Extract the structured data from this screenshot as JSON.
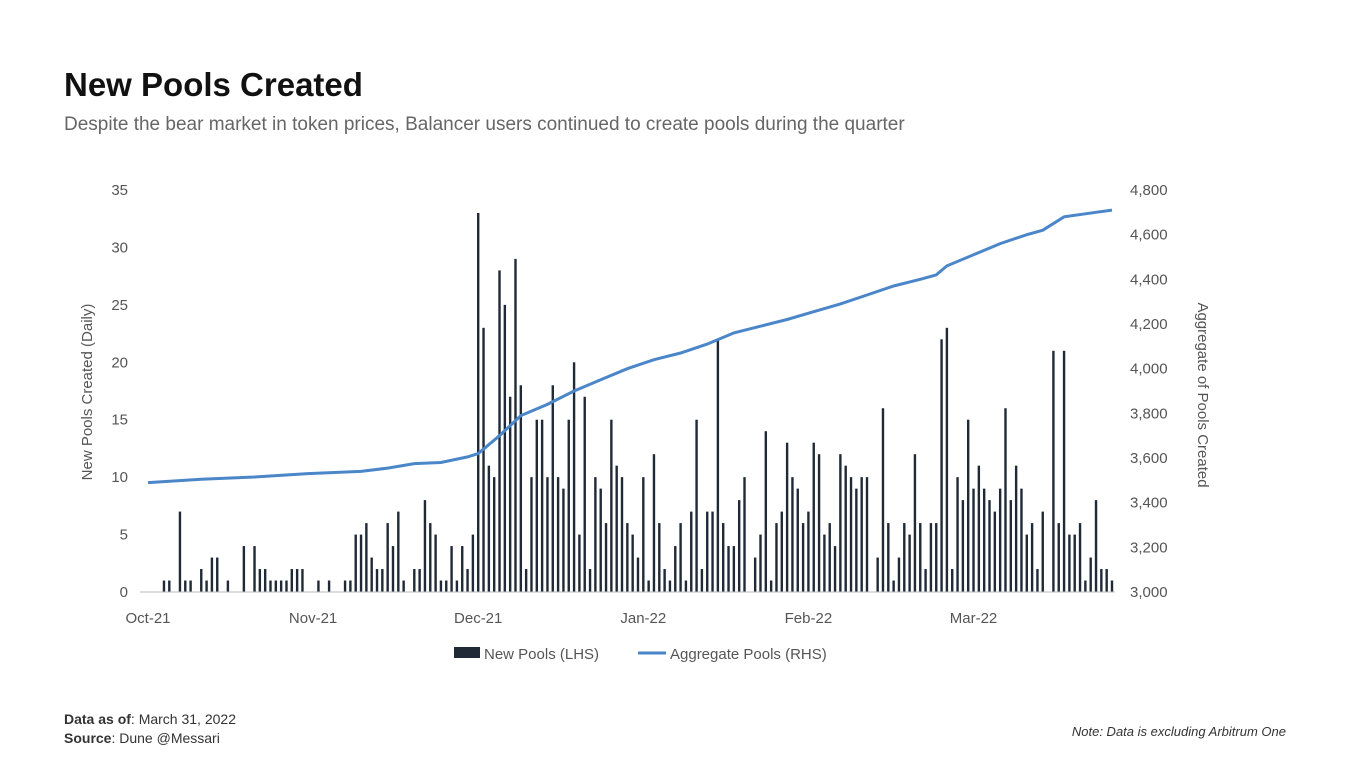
{
  "header": {
    "title": "New Pools Created",
    "subtitle": "Despite the bear market in token prices, Balancer users continued to create pools during the quarter"
  },
  "chart_data": {
    "type": "bar+line",
    "x_count": 182,
    "categories": [
      "Oct-21",
      "Nov-21",
      "Dec-21",
      "Jan-22",
      "Feb-22",
      "Mar-22"
    ],
    "category_start_index": [
      0,
      31,
      62,
      93,
      124,
      155
    ],
    "ylabel": "New Pools Created (Daily)",
    "y2label": "Aggregate of Pools Created",
    "ylim": [
      0,
      35
    ],
    "yticks": [
      "0",
      "5",
      "10",
      "15",
      "20",
      "25",
      "30",
      "35"
    ],
    "y2lim": [
      3000,
      4800
    ],
    "y2ticks": [
      "3,000",
      "3,200",
      "3,400",
      "3,600",
      "3,800",
      "4,000",
      "4,200",
      "4,400",
      "4,600",
      "4,800"
    ],
    "legend": {
      "placement": "bottom",
      "entries": [
        "New Pools (LHS)",
        "Aggregate Pools (RHS)"
      ]
    },
    "colors": {
      "bars": "#1f2a36",
      "line": "#4a86c8"
    },
    "series": [
      {
        "name": "New Pools (LHS)",
        "type": "bar",
        "x": [
          3,
          4,
          6,
          7,
          8,
          10,
          11,
          12,
          13,
          15,
          18,
          20,
          21,
          22,
          23,
          24,
          25,
          26,
          27,
          28,
          29,
          32,
          34,
          37,
          38,
          39,
          40,
          41,
          42,
          43,
          44,
          45,
          46,
          47,
          48,
          50,
          51,
          52,
          53,
          54,
          55,
          56,
          57,
          58,
          59,
          60,
          61,
          62,
          63,
          64,
          65,
          66,
          67,
          68,
          69,
          70,
          71,
          72,
          73,
          74,
          75,
          76,
          77,
          78,
          79,
          80,
          81,
          82,
          83,
          84,
          85,
          86,
          87,
          88,
          89,
          90,
          91,
          92,
          93,
          94,
          95,
          96,
          97,
          98,
          99,
          100,
          101,
          102,
          103,
          104,
          105,
          106,
          107,
          108,
          109,
          110,
          111,
          112,
          114,
          115,
          116,
          117,
          118,
          119,
          120,
          121,
          122,
          123,
          124,
          125,
          126,
          127,
          128,
          129,
          130,
          131,
          132,
          133,
          134,
          135,
          137,
          138,
          139,
          140,
          141,
          142,
          143,
          144,
          145,
          146,
          147,
          148,
          149,
          150,
          151,
          152,
          153,
          154,
          155,
          156,
          157,
          158,
          159,
          160,
          161,
          162,
          163,
          164,
          165,
          166,
          167,
          168,
          170,
          171,
          172,
          173,
          174,
          175,
          176,
          177,
          178,
          179,
          180,
          181
        ],
        "values": [
          1,
          1,
          7,
          1,
          1,
          2,
          1,
          3,
          3,
          1,
          4,
          4,
          2,
          2,
          1,
          1,
          1,
          1,
          2,
          2,
          2,
          1,
          1,
          1,
          1,
          5,
          5,
          6,
          3,
          2,
          2,
          6,
          4,
          7,
          1,
          2,
          2,
          8,
          6,
          5,
          1,
          1,
          4,
          1,
          4,
          2,
          5,
          33,
          23,
          11,
          10,
          28,
          25,
          17,
          29,
          18,
          2,
          10,
          15,
          15,
          10,
          18,
          10,
          9,
          15,
          20,
          5,
          17,
          2,
          10,
          9,
          6,
          15,
          11,
          10,
          6,
          5,
          3,
          10,
          1,
          12,
          6,
          2,
          1,
          4,
          6,
          1,
          7,
          15,
          2,
          7,
          7,
          22,
          6,
          4,
          4,
          8,
          10,
          3,
          5,
          14,
          1,
          6,
          7,
          13,
          10,
          9,
          6,
          7,
          13,
          12,
          5,
          6,
          4,
          12,
          11,
          10,
          9,
          10,
          10,
          3,
          16,
          6,
          1,
          3,
          6,
          5,
          12,
          6,
          2,
          6,
          6,
          22,
          23,
          2,
          10,
          8,
          15,
          9,
          11,
          9,
          8,
          7,
          9,
          16,
          8,
          11,
          9,
          5,
          6,
          2,
          7,
          21,
          6,
          21,
          5,
          5,
          6,
          1,
          3,
          8,
          2,
          2,
          1
        ]
      },
      {
        "name": "Aggregate Pools (RHS)",
        "type": "line",
        "x": [
          0,
          10,
          20,
          30,
          40,
          45,
          50,
          55,
          60,
          62,
          66,
          70,
          75,
          80,
          85,
          90,
          95,
          100,
          105,
          110,
          115,
          120,
          125,
          130,
          135,
          140,
          145,
          148,
          150,
          155,
          160,
          165,
          168,
          172,
          178,
          181
        ],
        "values": [
          3490,
          3505,
          3515,
          3530,
          3540,
          3555,
          3575,
          3580,
          3605,
          3620,
          3700,
          3790,
          3840,
          3900,
          3950,
          4000,
          4040,
          4070,
          4110,
          4160,
          4190,
          4220,
          4255,
          4290,
          4330,
          4370,
          4400,
          4420,
          4460,
          4510,
          4560,
          4600,
          4620,
          4680,
          4700,
          4710
        ]
      }
    ]
  },
  "footer": {
    "data_as_of_label": "Data as of",
    "data_as_of_value": ": March 31, 2022",
    "source_label": "Source",
    "source_value": ": Dune @Messari",
    "note": "Note: Data is excluding Arbitrum One"
  }
}
